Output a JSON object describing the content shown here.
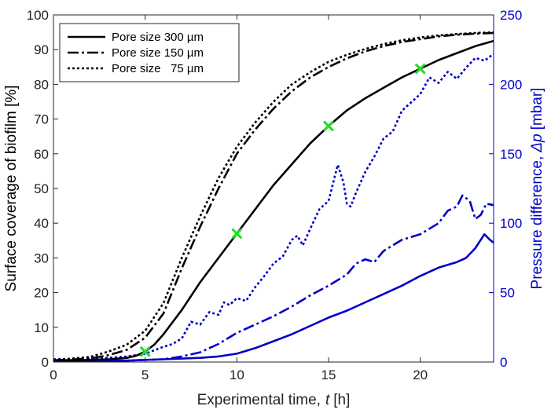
{
  "chart_data": {
    "type": "line",
    "xlabel_text": "Experimental time,",
    "xlabel_var": "t",
    "xlabel_unit": "[h]",
    "ylabel": "Surface coverage of biofilm [%]",
    "y2label_text": "Pressure difference,",
    "y2label_var": "Δp",
    "y2label_unit": "[mbar]",
    "xlim": [
      0,
      24
    ],
    "ylim": [
      0,
      100
    ],
    "y2lim": [
      0,
      250
    ],
    "xticks": [
      0,
      5,
      10,
      15,
      20
    ],
    "yticks": [
      0,
      10,
      20,
      30,
      40,
      50,
      60,
      70,
      80,
      90,
      100
    ],
    "y2ticks": [
      0,
      50,
      100,
      150,
      200,
      250
    ],
    "grid": false,
    "legend_position": "top-left",
    "colors": {
      "coverage": "#000000",
      "pressure": "#0000c8",
      "marker": "#22dd22",
      "right_axis": "#0000c8"
    },
    "legend": [
      {
        "label": "Pore size 300 µm",
        "dash": "solid"
      },
      {
        "label": "Pore size 150 µm",
        "dash": "dashdot"
      },
      {
        "label": "Pore size   75 µm",
        "dash": "dotted"
      }
    ],
    "coverage_series": [
      {
        "name": "Pore size 300 µm",
        "axis": "left",
        "dash": "solid",
        "x": [
          0,
          2,
          3,
          4,
          4.5,
          5,
          5.5,
          6,
          7,
          8,
          9,
          10,
          11,
          12,
          13,
          14,
          15,
          16,
          17,
          18,
          19,
          20,
          21,
          22,
          23,
          24
        ],
        "y": [
          0.5,
          0.6,
          0.8,
          1.2,
          1.8,
          3,
          5,
          8,
          15,
          23,
          30,
          37,
          44,
          51,
          57,
          63,
          68,
          72.5,
          76,
          79,
          82,
          84.5,
          87,
          89,
          91,
          92.5
        ]
      },
      {
        "name": "Pore size 150 µm",
        "axis": "left",
        "dash": "dashdot",
        "x": [
          0,
          2,
          3,
          4,
          5,
          6,
          7,
          8,
          9,
          10,
          11,
          12,
          13,
          14,
          15,
          16,
          17,
          18,
          19,
          20,
          21,
          22,
          23,
          24
        ],
        "y": [
          0.5,
          1,
          2,
          3.5,
          7,
          14,
          27,
          39,
          50,
          60,
          67,
          73,
          78,
          82,
          85,
          87.5,
          89.5,
          91,
          92.2,
          93,
          93.8,
          94.3,
          94.6,
          94.8
        ]
      },
      {
        "name": "Pore size   75 µm",
        "axis": "left",
        "dash": "dotted",
        "x": [
          0,
          2,
          3,
          4,
          5,
          6,
          7,
          8,
          9,
          10,
          11,
          12,
          13,
          14,
          15,
          16,
          17,
          18,
          19,
          20,
          21,
          22,
          23,
          24
        ],
        "y": [
          0.5,
          1.5,
          3,
          5,
          9,
          17,
          30,
          42,
          53,
          62,
          69,
          75,
          80,
          83.5,
          86.5,
          88.5,
          90.2,
          91.6,
          92.7,
          93.5,
          94.1,
          94.5,
          94.8,
          95
        ]
      }
    ],
    "pressure_series": [
      {
        "name": "Pore size 300 µm",
        "axis": "right",
        "dash": "solid",
        "x": [
          0,
          2,
          4,
          6,
          8,
          9,
          10,
          11,
          12,
          13,
          14,
          15,
          16,
          17,
          18,
          19,
          20,
          21,
          22,
          22.5,
          23,
          23.5,
          23.8,
          24
        ],
        "y": [
          1,
          1,
          1,
          2,
          3,
          4,
          6,
          10,
          15,
          20,
          26,
          32,
          37,
          43,
          49,
          55,
          62,
          68,
          72,
          75,
          82,
          92,
          88,
          86
        ]
      },
      {
        "name": "Pore size 150 µm",
        "axis": "right",
        "dash": "dashdot",
        "x": [
          0,
          4,
          6,
          7,
          8,
          9,
          9.5,
          10,
          11,
          12,
          13,
          14,
          15,
          16,
          16.5,
          17,
          17.5,
          18,
          19,
          20,
          21,
          21.5,
          22,
          22.3,
          22.7,
          23,
          23.3,
          23.6,
          24
        ],
        "y": [
          1,
          1,
          2,
          4,
          7,
          13,
          17,
          21,
          27,
          33,
          40,
          48,
          55,
          63,
          71,
          74,
          72,
          80,
          88,
          92,
          100,
          109,
          112,
          120,
          116,
          103,
          106,
          114,
          113
        ]
      },
      {
        "name": "Pore size   75 µm",
        "axis": "right",
        "dash": "dotted",
        "x": [
          0,
          3,
          4,
          5,
          6,
          6.5,
          7,
          7.5,
          8,
          8.5,
          9,
          9.3,
          9.6,
          10,
          10.5,
          11,
          11.5,
          12,
          12.5,
          13,
          13.3,
          13.6,
          14,
          14.5,
          15,
          15.5,
          15.8,
          16,
          16.2,
          16.5,
          17,
          17.5,
          18,
          18.5,
          19,
          19.5,
          20,
          20.5,
          21,
          21.5,
          22,
          22.5,
          23,
          23.5,
          24
        ],
        "y": [
          2,
          3,
          4,
          6,
          11,
          13,
          17,
          29,
          27,
          36,
          34,
          43,
          41,
          46,
          44,
          54,
          62,
          71,
          76,
          88,
          91,
          84,
          96,
          110,
          116,
          142,
          130,
          114,
          112,
          122,
          137,
          148,
          161,
          166,
          181,
          187,
          193,
          205,
          201,
          209,
          204,
          212,
          219,
          217,
          222
        ]
      }
    ],
    "markers": {
      "series": "Pore size 300 µm",
      "x": [
        5,
        10,
        15,
        20
      ],
      "y": [
        3,
        37,
        68,
        84.5
      ]
    }
  }
}
